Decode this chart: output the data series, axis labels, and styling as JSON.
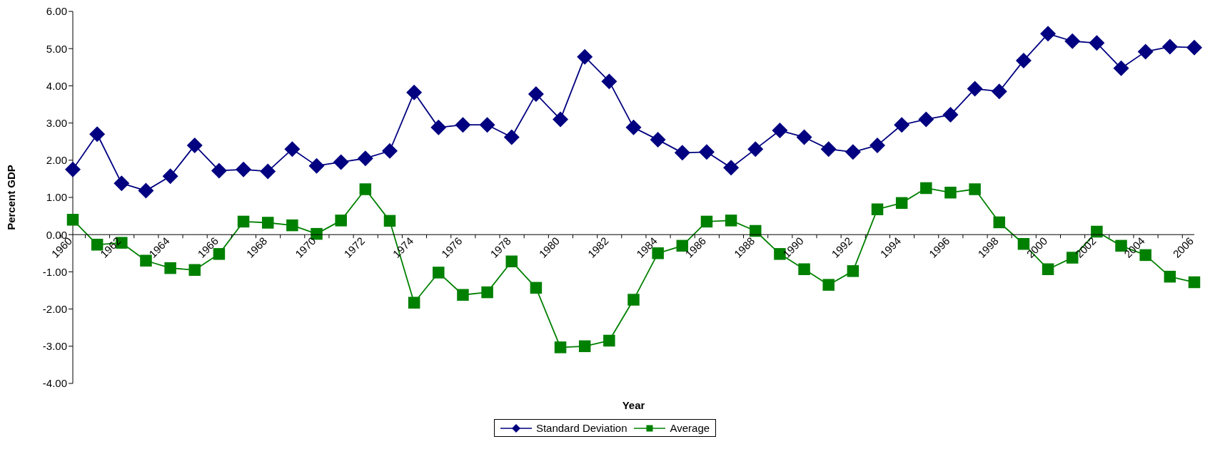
{
  "chart_data": {
    "type": "line",
    "xlabel": "Year",
    "ylabel": "Percent GDP",
    "categories": [
      "1960",
      null,
      "1962",
      null,
      "1964",
      null,
      "1966",
      null,
      "1968",
      null,
      "1970",
      null,
      "1972",
      null,
      "1974",
      null,
      "1976",
      null,
      "1978",
      null,
      "1980",
      null,
      "1982",
      null,
      "1984",
      null,
      "1986",
      null,
      "1988",
      null,
      "1990",
      null,
      "1992",
      null,
      "1994",
      null,
      "1996",
      null,
      "1998",
      null,
      "2000",
      null,
      "2002",
      null,
      "2004",
      null,
      "2006"
    ],
    "series": [
      {
        "name": "Standard Deviation",
        "color": "#000080",
        "marker": "diamond",
        "values": [
          1.75,
          2.7,
          1.38,
          1.18,
          1.57,
          2.4,
          1.72,
          1.75,
          1.7,
          2.3,
          1.85,
          1.95,
          2.05,
          2.25,
          3.82,
          2.88,
          2.95,
          2.95,
          2.62,
          3.78,
          3.1,
          4.78,
          4.12,
          2.88,
          2.55,
          2.2,
          2.22,
          1.8,
          2.3,
          2.8,
          2.62,
          2.3,
          2.22,
          2.4,
          2.95,
          3.1,
          3.22,
          3.92,
          3.85,
          4.68,
          5.4,
          5.2,
          5.15,
          4.47,
          4.92,
          5.05,
          5.03
        ]
      },
      {
        "name": "Average",
        "color": "#008000",
        "marker": "square",
        "values": [
          0.4,
          -0.27,
          -0.22,
          -0.7,
          -0.9,
          -0.95,
          -0.52,
          0.35,
          0.32,
          0.25,
          0.02,
          0.38,
          1.22,
          0.37,
          -1.83,
          -1.02,
          -1.62,
          -1.55,
          -0.72,
          -1.43,
          -3.03,
          -3.0,
          -2.85,
          -1.75,
          -0.5,
          -0.3,
          0.35,
          0.38,
          0.1,
          -0.52,
          -0.93,
          -1.35,
          -0.98,
          0.68,
          0.85,
          1.25,
          1.13,
          1.22,
          0.33,
          -0.25,
          -0.93,
          -0.62,
          0.08,
          -0.3,
          -0.55,
          -1.13,
          -1.28
        ]
      }
    ],
    "ylim": [
      -4,
      6
    ],
    "yticks": [
      {
        "value": 6,
        "label": "6.00"
      },
      {
        "value": 5,
        "label": "5.00"
      },
      {
        "value": 4,
        "label": "4.00"
      },
      {
        "value": 3,
        "label": "3.00"
      },
      {
        "value": 2,
        "label": "2.00"
      },
      {
        "value": 1,
        "label": "1.00"
      },
      {
        "value": 0,
        "label": "0.00"
      },
      {
        "value": -1,
        "label": "-1.00"
      },
      {
        "value": -2,
        "label": "-2.00"
      },
      {
        "value": -3,
        "label": "-3.00"
      },
      {
        "value": -4,
        "label": "-4.00"
      }
    ],
    "grid": false,
    "legend": "bottom",
    "line_style": "solid"
  }
}
